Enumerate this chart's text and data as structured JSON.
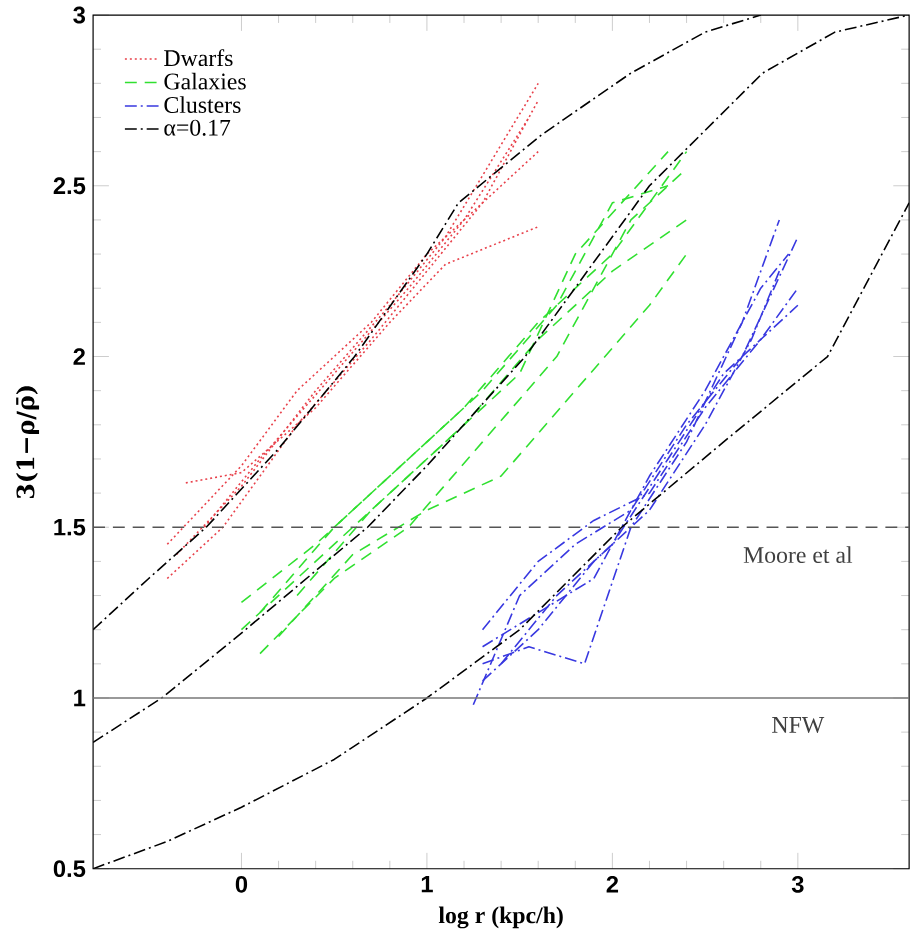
{
  "chart_data": {
    "type": "line",
    "xlabel": "log r (kpc/h)",
    "ylabel": "3(1−ρ/ρ̄)",
    "xlim": [
      -0.8,
      3.6
    ],
    "ylim": [
      0.5,
      3
    ],
    "xticks": [
      0,
      1,
      2,
      3
    ],
    "yticks": [
      0.5,
      1,
      1.5,
      2,
      2.5,
      3
    ],
    "legend": "top left",
    "grid": false,
    "marker": "none",
    "ref_lines": [
      {
        "axis": "y",
        "value": 1.5,
        "label": "Moore et al",
        "color": "#555555",
        "line_style": "dashed"
      },
      {
        "axis": "y",
        "value": 1,
        "label": "NFW",
        "color": "#777777",
        "line_style": "solid"
      }
    ],
    "series": [
      {
        "name": "Dwarfs",
        "color": "#e8404a",
        "line_style": "dotted",
        "x": [
          -0.3,
          0,
          0.4,
          0.8,
          1.1,
          1.6
        ],
        "values": [
          1.63,
          1.66,
          1.85,
          2.1,
          2.27,
          2.38
        ]
      },
      {
        "color": "#e8404a",
        "line_style": "dotted",
        "x": [
          -0.4,
          -0.1,
          0.3,
          0.7,
          1.0,
          1.3,
          1.6
        ],
        "values": [
          1.35,
          1.5,
          1.8,
          2.05,
          2.25,
          2.45,
          2.75
        ]
      },
      {
        "color": "#e8404a",
        "line_style": "dotted",
        "x": [
          -0.35,
          0,
          0.4,
          0.8,
          1.1,
          1.6
        ],
        "values": [
          1.42,
          1.62,
          1.9,
          2.15,
          2.35,
          2.8
        ]
      },
      {
        "color": "#e8404a",
        "line_style": "dotted",
        "x": [
          -0.2,
          0.1,
          0.5,
          0.9,
          1.2,
          1.55
        ],
        "values": [
          1.5,
          1.7,
          1.95,
          2.2,
          2.4,
          2.7
        ]
      },
      {
        "color": "#e8404a",
        "line_style": "dotted",
        "x": [
          -0.4,
          0,
          0.3,
          0.7,
          1.0,
          1.6
        ],
        "values": [
          1.45,
          1.68,
          1.9,
          2.1,
          2.3,
          2.6
        ]
      },
      {
        "name": "Galaxies",
        "color": "#30e030",
        "line_style": "dashed",
        "x": [
          0,
          0.4,
          0.8,
          1.2,
          1.6,
          2.0,
          2.4
        ],
        "values": [
          1.28,
          1.45,
          1.65,
          1.85,
          2.1,
          2.3,
          2.6
        ]
      },
      {
        "color": "#30e030",
        "line_style": "dashed",
        "x": [
          0.1,
          0.5,
          0.9,
          1.3,
          1.7,
          2.1,
          2.4
        ],
        "values": [
          1.13,
          1.35,
          1.5,
          1.75,
          2.0,
          2.4,
          2.55
        ]
      },
      {
        "color": "#30e030",
        "line_style": "dashed",
        "x": [
          0,
          0.4,
          0.8,
          1.2,
          1.6,
          2.0,
          2.4
        ],
        "values": [
          1.2,
          1.4,
          1.6,
          1.8,
          2.05,
          2.25,
          2.4
        ]
      },
      {
        "color": "#30e030",
        "line_style": "dashed",
        "x": [
          0.2,
          0.6,
          1.0,
          1.4,
          1.8,
          2.2,
          2.4
        ],
        "values": [
          1.18,
          1.42,
          1.55,
          1.65,
          1.9,
          2.15,
          2.3
        ]
      },
      {
        "color": "#30e030",
        "line_style": "dashed",
        "x": [
          0.3,
          0.7,
          1.1,
          1.5,
          1.8,
          2.1,
          2.3
        ],
        "values": [
          1.3,
          1.55,
          1.75,
          1.95,
          2.3,
          2.48,
          2.6
        ]
      },
      {
        "color": "#30e030",
        "line_style": "dashed",
        "x": [
          0.1,
          0.5,
          0.9,
          1.3,
          1.7,
          2.0,
          2.3
        ],
        "values": [
          1.25,
          1.5,
          1.7,
          1.9,
          2.15,
          2.45,
          2.5
        ]
      },
      {
        "name": "Clusters",
        "color": "#3838e0",
        "line_style": "dashdot",
        "x": [
          1.25,
          1.5,
          1.8,
          2.1,
          2.4,
          2.7,
          3.0
        ],
        "values": [
          0.98,
          1.3,
          1.45,
          1.55,
          1.8,
          2.0,
          2.35
        ]
      },
      {
        "color": "#3838e0",
        "line_style": "dashdot",
        "x": [
          1.3,
          1.55,
          1.85,
          2.1,
          2.4,
          2.7,
          2.9
        ],
        "values": [
          1.1,
          1.15,
          1.1,
          1.5,
          1.75,
          2.1,
          2.4
        ]
      },
      {
        "color": "#3838e0",
        "line_style": "dashdot",
        "x": [
          1.3,
          1.6,
          1.9,
          2.2,
          2.5,
          2.8,
          3.0
        ],
        "values": [
          1.2,
          1.4,
          1.52,
          1.6,
          1.85,
          2.05,
          2.2
        ]
      },
      {
        "color": "#3838e0",
        "line_style": "dashdot",
        "x": [
          1.3,
          1.6,
          1.9,
          2.2,
          2.5,
          2.8,
          2.95
        ],
        "values": [
          1.15,
          1.25,
          1.35,
          1.65,
          1.9,
          2.2,
          2.3
        ]
      },
      {
        "color": "#3838e0",
        "line_style": "dashdot",
        "x": [
          1.4,
          1.7,
          2.0,
          2.3,
          2.6,
          2.9,
          3.0
        ],
        "values": [
          1.1,
          1.3,
          1.45,
          1.7,
          1.95,
          2.1,
          2.15
        ]
      },
      {
        "color": "#3838e0",
        "line_style": "dashdot",
        "x": [
          1.3,
          1.6,
          1.9,
          2.2,
          2.5,
          2.75,
          2.9
        ],
        "values": [
          1.05,
          1.2,
          1.4,
          1.55,
          1.8,
          2.05,
          2.25
        ]
      },
      {
        "name": "α=0.17",
        "color": "#000000",
        "line_style": "dashdot",
        "x": [
          -0.8,
          -0.5,
          -0.19,
          0.2,
          0.61,
          1.0,
          1.17,
          1.62,
          2.1,
          2.5,
          2.8
        ],
        "values": [
          1.2,
          1.35,
          1.5,
          1.73,
          2.0,
          2.3,
          2.45,
          2.65,
          2.83,
          2.95,
          3.0
        ]
      },
      {
        "color": "#000000",
        "line_style": "dashdot",
        "x": [
          -0.8,
          -0.43,
          0,
          0.68,
          1.0,
          1.53,
          2.2,
          2.81,
          3.2,
          3.6
        ],
        "values": [
          0.87,
          1.0,
          1.19,
          1.5,
          1.68,
          2.0,
          2.5,
          2.83,
          2.95,
          3.0
        ]
      },
      {
        "color": "#000000",
        "line_style": "dashdot",
        "x": [
          -0.8,
          -0.4,
          0,
          0.5,
          1.0,
          1.5,
          2.05,
          2.6,
          3.16,
          3.6
        ],
        "values": [
          0.5,
          0.58,
          0.68,
          0.82,
          1.0,
          1.2,
          1.5,
          1.75,
          2.0,
          2.45
        ]
      }
    ]
  }
}
